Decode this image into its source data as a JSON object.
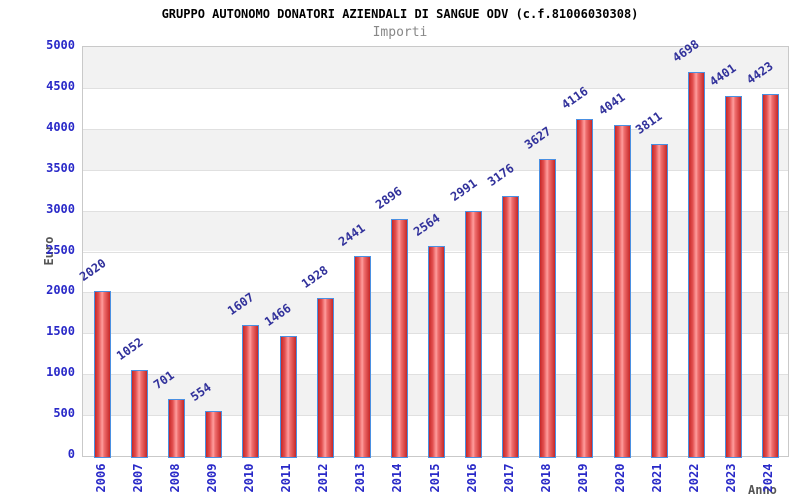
{
  "header": {
    "title": "GRUPPO AUTONOMO DONATORI AZIENDALI DI SANGUE ODV (c.f.81006030308)",
    "subtitle": "Importi"
  },
  "chart_data": {
    "type": "bar",
    "title": "GRUPPO AUTONOMO DONATORI AZIENDALI DI SANGUE ODV (c.f.81006030308)",
    "subtitle": "Importi",
    "xlabel": "Anno",
    "ylabel": "Euro",
    "categories": [
      "2006",
      "2007",
      "2008",
      "2009",
      "2010",
      "2011",
      "2012",
      "2013",
      "2014",
      "2015",
      "2016",
      "2017",
      "2018",
      "2019",
      "2020",
      "2021",
      "2022",
      "2023",
      "2024"
    ],
    "values": [
      2020,
      1052,
      701,
      554,
      1607,
      1466,
      1928,
      2441,
      2896,
      2564,
      2991,
      3176,
      3627,
      4116,
      4041,
      3811,
      4698,
      4401,
      4423
    ],
    "ylim": [
      0,
      5000
    ],
    "ytick_step": 500,
    "yticks": [
      0,
      500,
      1000,
      1500,
      2000,
      2500,
      3000,
      3500,
      4000,
      4500,
      5000
    ],
    "grid": true,
    "legend": "none",
    "colors": {
      "bar_fill_dark": "#c62828",
      "bar_fill_light": "#ff9e9e",
      "bar_border": "#4a90e2",
      "tick_label": "#2929c8",
      "value_label": "#31319b",
      "axis_title": "#555555",
      "band_gray": "#f2f2f2",
      "gridline": "#e0e0e0",
      "title": "#000000",
      "subtitle": "#888888"
    }
  }
}
